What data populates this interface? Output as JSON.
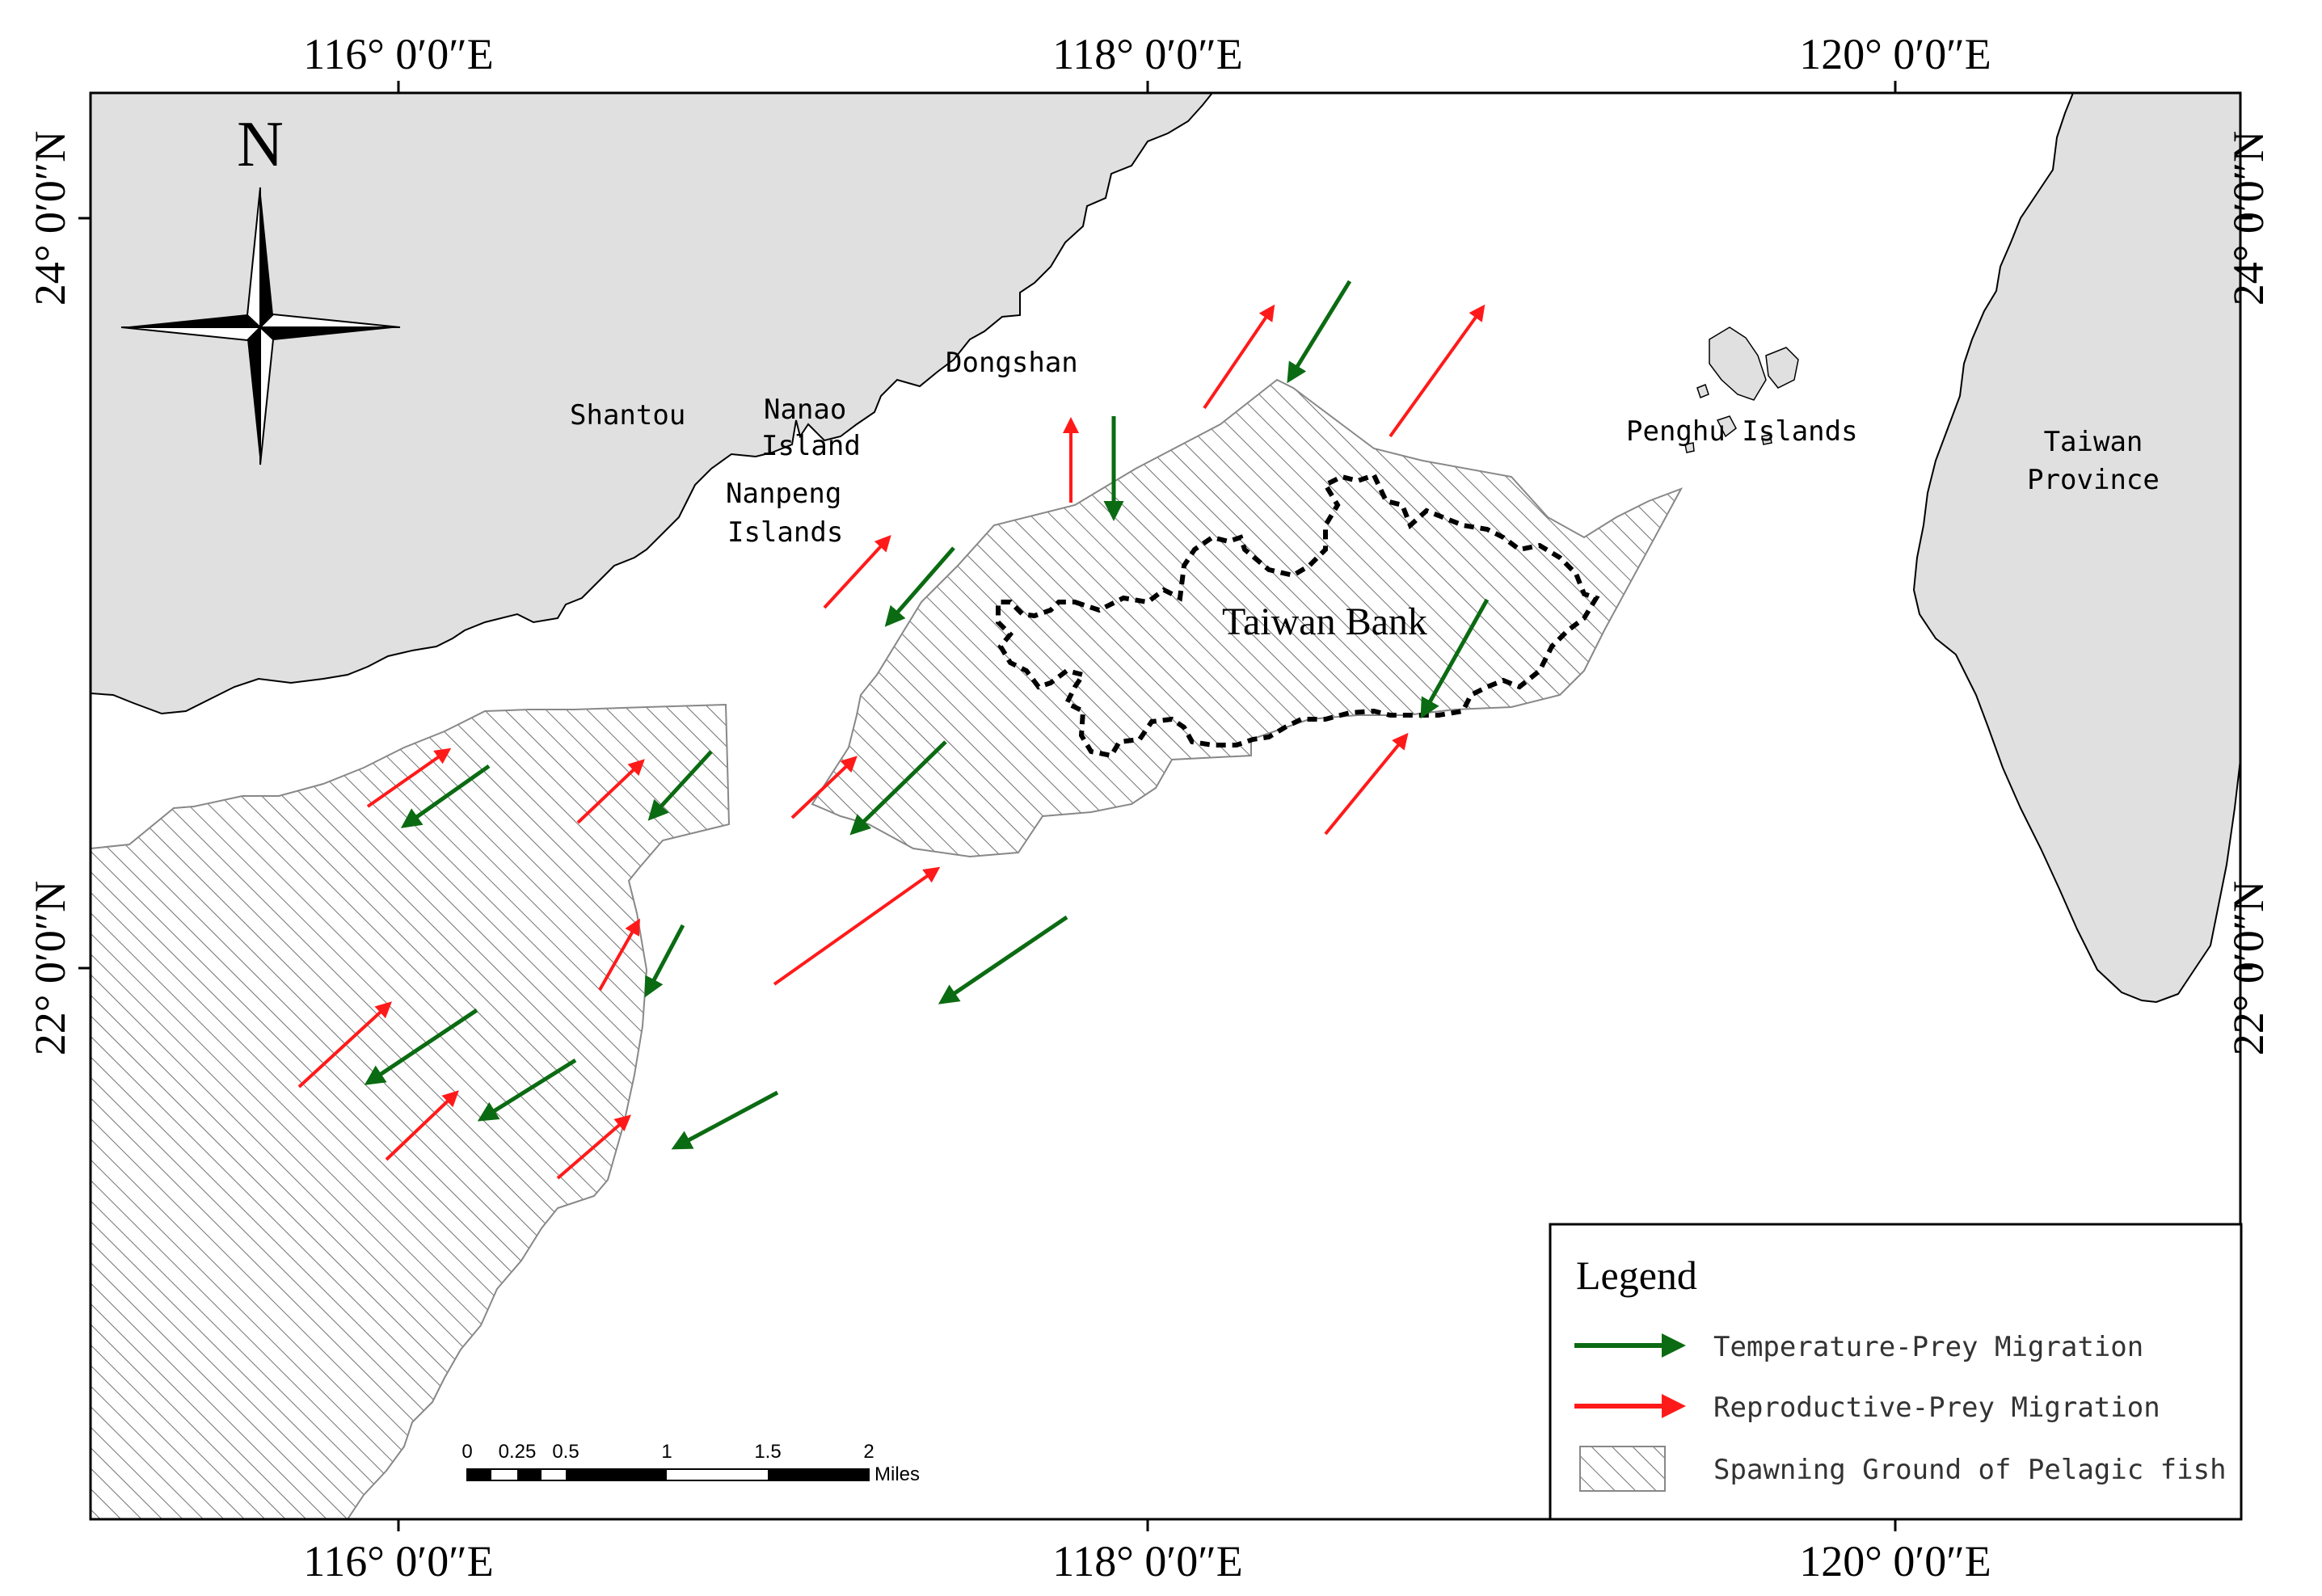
{
  "axes": {
    "top_labels": [
      "116° 0′0″E",
      "118° 0′0″E",
      "120° 0′0″E"
    ],
    "bottom_labels": [
      "116° 0′0″E",
      "118° 0′0″E",
      "120° 0′0″E"
    ],
    "left_labels": [
      "24° 0′0″N",
      "22° 0′0″N"
    ],
    "right_labels": [
      "24° 0′0″N",
      "22° 0′0″N"
    ]
  },
  "north_arrow": {
    "label": "N"
  },
  "places": {
    "shantou": "Shantou",
    "nanao_1": "Nanao",
    "nanao_2": "Island",
    "nanpeng_1": "Nanpeng",
    "nanpeng_2": "Islands",
    "dongshan": "Dongshan",
    "penghu": "Penghu Islands",
    "taiwan_1": "Taiwan",
    "taiwan_2": "Province",
    "taiwan_bank": "Taiwan Bank"
  },
  "legend": {
    "title": "Legend",
    "items": [
      {
        "label": "Temperature-Prey Migration",
        "color": "#0b6b12"
      },
      {
        "label": "Reproductive-Prey Migration",
        "color": "#ff1a1a"
      },
      {
        "label": "Spawning Ground of Pelagic fish"
      }
    ]
  },
  "scale_bar": {
    "ticks": [
      "0",
      "0.25",
      "0.5",
      "1",
      "1.5",
      "2"
    ],
    "unit": "Miles"
  },
  "colors": {
    "land": "#e0e0e0",
    "temperature_prey": "#0b6b12",
    "reproductive_prey": "#ff1a1a",
    "hatch": "#666666"
  }
}
